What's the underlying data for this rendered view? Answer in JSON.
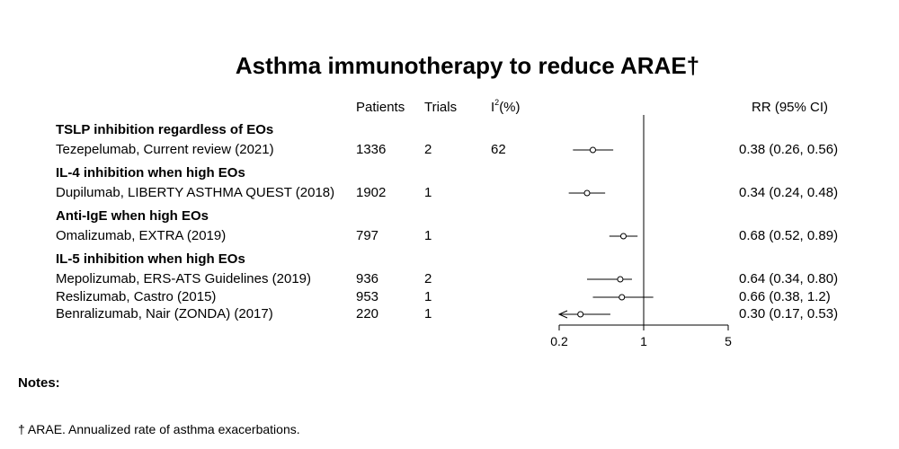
{
  "title": "Asthma immunotherapy to reduce ARAE†",
  "headers": {
    "patients": "Patients",
    "trials": "Trials",
    "i2_prefix": "I",
    "i2_sup": "2",
    "i2_suffix": "(%)",
    "rr": "RR (95% CI)"
  },
  "notes_label": "Notes:",
  "footnote": "† ARAE. Annualized rate of asthma exacerbations.",
  "chart_data": {
    "type": "forest",
    "title": "Asthma immunotherapy to reduce ARAE†",
    "x_scale": "log",
    "xlim": [
      0.2,
      5
    ],
    "xticks": [
      0.2,
      1,
      5
    ],
    "xtick_labels": [
      "0.2",
      "1",
      "5"
    ],
    "reference_line": 1,
    "groups": [
      {
        "name": "TSLP inhibition regardless of EOs",
        "studies": [
          {
            "label": "Tezepelumab, Current review (2021)",
            "patients": "1336",
            "trials": "2",
            "i2": "62",
            "rr": 0.38,
            "lower": 0.26,
            "upper": 0.56,
            "ci_text": "0.38 (0.26, 0.56)"
          }
        ]
      },
      {
        "name": "IL-4 inhibition when high EOs",
        "studies": [
          {
            "label": "Dupilumab, LIBERTY ASTHMA QUEST (2018)",
            "patients": "1902",
            "trials": "1",
            "i2": "",
            "rr": 0.34,
            "lower": 0.24,
            "upper": 0.48,
            "ci_text": "0.34 (0.24, 0.48)"
          }
        ]
      },
      {
        "name": "Anti-IgE when high EOs",
        "studies": [
          {
            "label": "Omalizumab, EXTRA (2019)",
            "patients": "797",
            "trials": "1",
            "i2": "",
            "rr": 0.68,
            "lower": 0.52,
            "upper": 0.89,
            "ci_text": "0.68 (0.52, 0.89)"
          }
        ]
      },
      {
        "name": "IL-5 inhibition when high EOs",
        "studies": [
          {
            "label": "Mepolizumab, ERS-ATS Guidelines (2019)",
            "patients": "936",
            "trials": "2",
            "i2": "",
            "rr": 0.64,
            "lower": 0.34,
            "upper": 0.8,
            "ci_text": "0.64 (0.34, 0.80)"
          },
          {
            "label": "Reslizumab, Castro (2015)",
            "patients": "953",
            "trials": "1",
            "i2": "",
            "rr": 0.66,
            "lower": 0.38,
            "upper": 1.2,
            "ci_text": "0.66 (0.38, 1.2)"
          },
          {
            "label": "Benralizumab, Nair (ZONDA) (2017)",
            "patients": "220",
            "trials": "1",
            "i2": "",
            "rr": 0.3,
            "lower": 0.17,
            "upper": 0.53,
            "ci_text": "0.30 (0.17, 0.53)",
            "lower_truncated": true
          }
        ]
      }
    ]
  }
}
